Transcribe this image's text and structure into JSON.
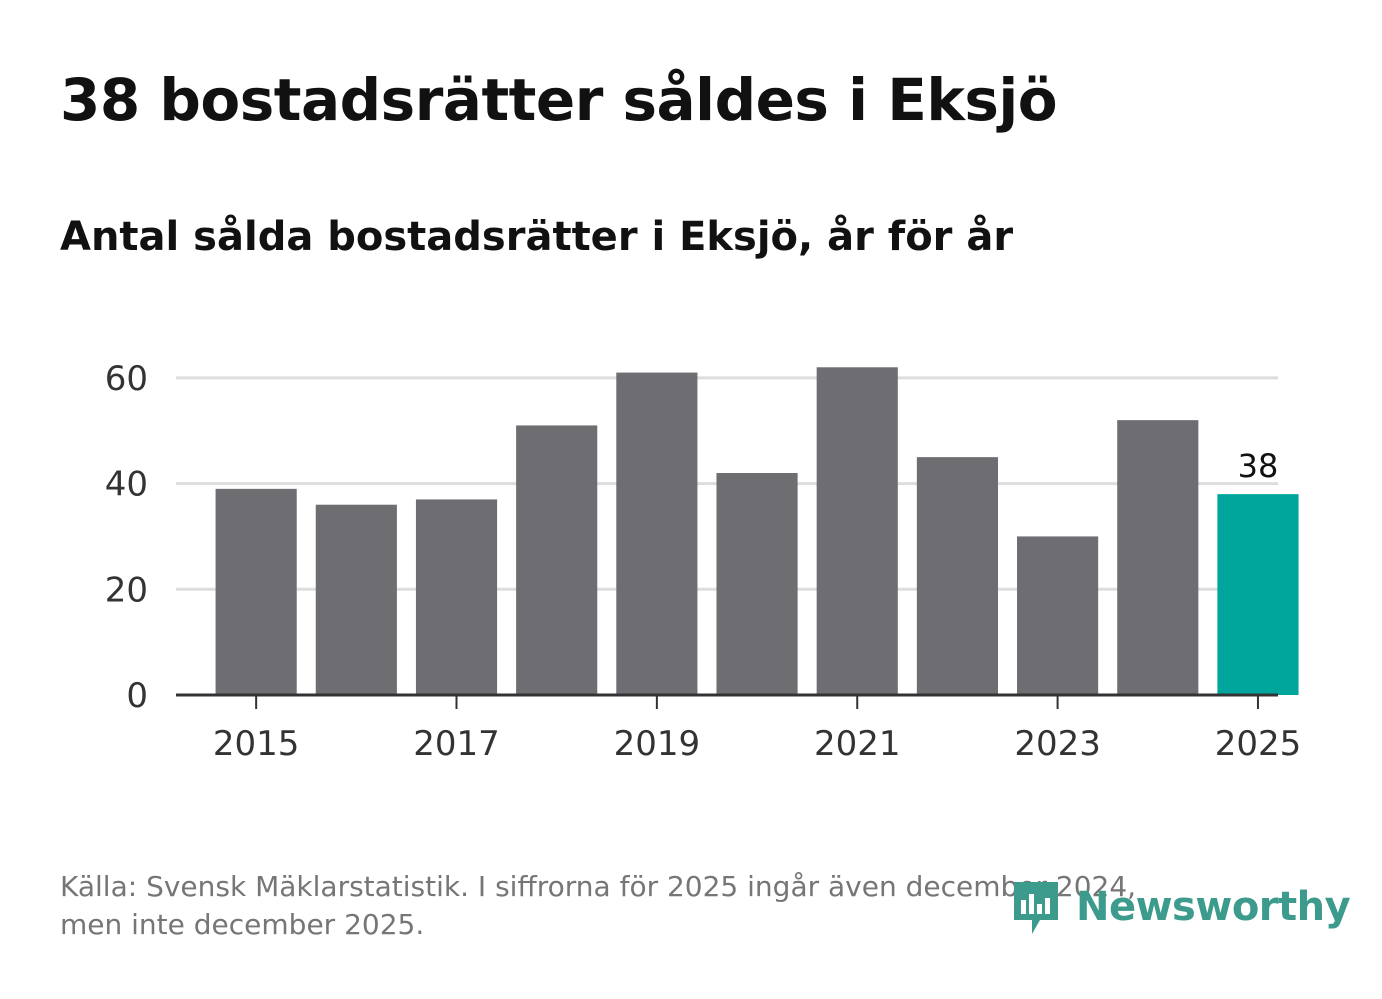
{
  "title": "38 bostadsrätter såldes i Eksjö",
  "subtitle": "Antal sålda bostadsrätter i Eksjö, år för år",
  "footnote": {
    "line1": "Källa: Svensk Mäklarstatistik. I siffrorna för 2025 ingår även december 2024,",
    "line2": "men inte december 2025."
  },
  "logo": {
    "text": "Newsworthy",
    "icon": "newsworthy-logo-icon"
  },
  "colors": {
    "bar": "#6e6d72",
    "highlight": "#00a59b",
    "grid": "#dddddd",
    "axis": "#333333",
    "tick_text": "#333333"
  },
  "chart_data": {
    "type": "bar",
    "title": "Antal sålda bostadsrätter i Eksjö, år för år",
    "categories": [
      "2015",
      "2016",
      "2017",
      "2018",
      "2019",
      "2020",
      "2021",
      "2022",
      "2023",
      "2024",
      "2025"
    ],
    "values": [
      39,
      36,
      37,
      51,
      61,
      42,
      62,
      45,
      30,
      52,
      38
    ],
    "highlight_index": 10,
    "data_labels": [
      {
        "index": 10,
        "text": "38"
      }
    ],
    "x_tick_labels": [
      "2015",
      "2017",
      "2019",
      "2021",
      "2023",
      "2025"
    ],
    "y_ticks": [
      0,
      20,
      40,
      60
    ],
    "ylim": [
      0,
      70
    ],
    "xlabel": "",
    "ylabel": "",
    "grid": true
  }
}
